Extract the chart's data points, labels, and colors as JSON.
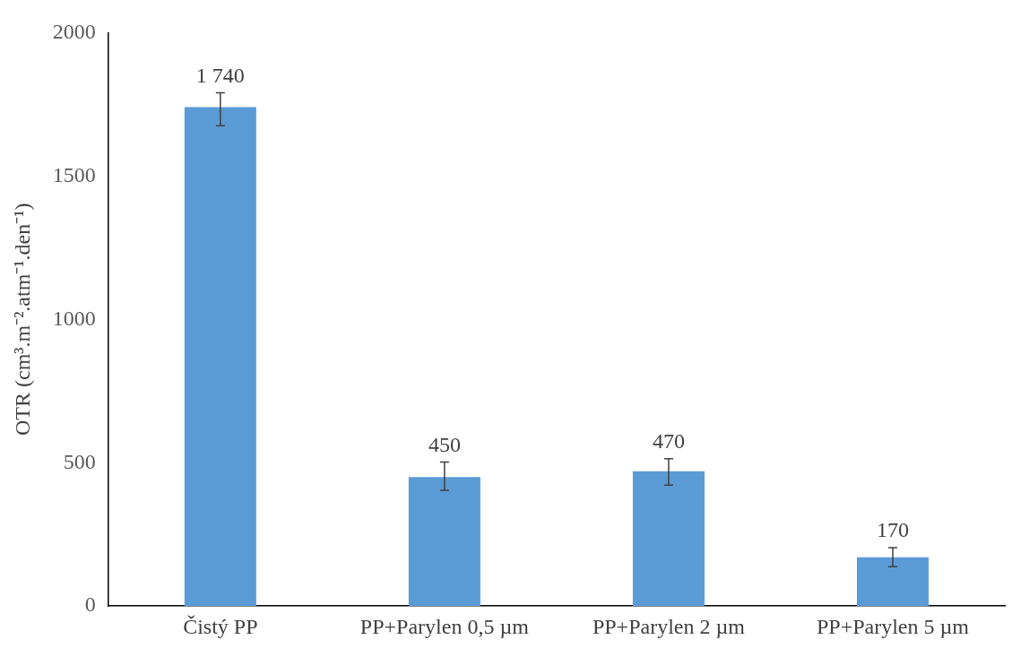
{
  "chart_data": {
    "type": "bar",
    "ylabel": "OTR (cm³.m⁻².atm⁻¹.den⁻¹)",
    "categories": [
      "Čistý PP",
      "PP+Parylen 0,5 µm",
      "PP+Parylen 2 µm",
      "PP+Parylen 5 µm"
    ],
    "values": [
      1740,
      450,
      470,
      170
    ],
    "errors": [
      [
        1675,
        1790
      ],
      [
        404,
        502
      ],
      [
        422,
        514
      ],
      [
        137,
        204
      ]
    ],
    "value_labels": [
      "1 740",
      "450",
      "470",
      "170"
    ],
    "color": "#5b9bd5",
    "ylim": [
      0,
      2000
    ],
    "yticks": [
      0,
      500,
      1000,
      1500,
      2000
    ],
    "grid": false,
    "legend": false
  }
}
